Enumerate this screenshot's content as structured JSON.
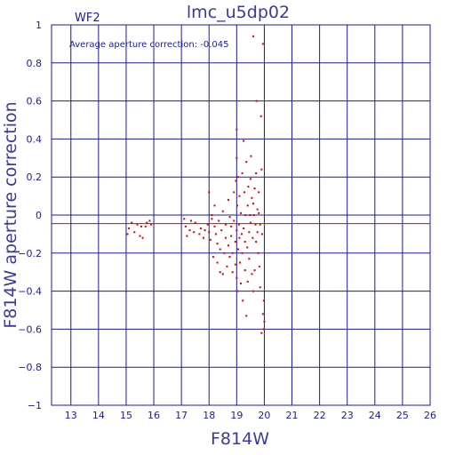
{
  "chart_data": {
    "type": "scatter",
    "title": "lmc_u5dp02",
    "chip_label": "WF2",
    "annotation": "Average aperture correction: -0.045",
    "xlabel": "F814W",
    "ylabel": "F814W aperture correction",
    "xlim": [
      12.3,
      26
    ],
    "ylim": [
      -1,
      1
    ],
    "x_ticks": [
      "13",
      "14",
      "15",
      "16",
      "17",
      "18",
      "19",
      "20",
      "21",
      "22",
      "23",
      "24",
      "25",
      "26"
    ],
    "y_ticks": [
      "1",
      "0.8",
      "0.6",
      "0.4",
      "0.2",
      "0",
      "−0.2",
      "−0.4",
      "−0.6",
      "−0.8",
      "−1"
    ],
    "grid": true,
    "reference_line": {
      "y": -0.045,
      "color": "#e00000"
    },
    "colors": {
      "axes": "#1a1aa0",
      "points": "#e00000"
    },
    "points": [
      [
        15.05,
        -0.1
      ],
      [
        15.1,
        -0.07
      ],
      [
        15.2,
        -0.04
      ],
      [
        15.3,
        -0.09
      ],
      [
        15.4,
        -0.05
      ],
      [
        15.5,
        -0.11
      ],
      [
        15.55,
        -0.06
      ],
      [
        15.6,
        -0.12
      ],
      [
        15.7,
        -0.06
      ],
      [
        15.75,
        -0.04
      ],
      [
        15.85,
        -0.03
      ],
      [
        15.9,
        -0.05
      ],
      [
        17.1,
        -0.02
      ],
      [
        17.15,
        -0.06
      ],
      [
        17.2,
        -0.11
      ],
      [
        17.3,
        -0.08
      ],
      [
        17.35,
        -0.03
      ],
      [
        17.45,
        -0.09
      ],
      [
        17.5,
        -0.04
      ],
      [
        17.65,
        -0.1
      ],
      [
        17.7,
        -0.07
      ],
      [
        17.8,
        -0.12
      ],
      [
        17.85,
        -0.08
      ],
      [
        17.95,
        -0.05
      ],
      [
        18.0,
        -0.09
      ],
      [
        18.0,
        0.12
      ],
      [
        18.05,
        -0.13
      ],
      [
        18.1,
        -0.02
      ],
      [
        18.1,
        0.0
      ],
      [
        18.15,
        -0.22
      ],
      [
        18.2,
        -0.06
      ],
      [
        18.2,
        0.05
      ],
      [
        18.25,
        -0.1
      ],
      [
        18.3,
        -0.25
      ],
      [
        18.3,
        -0.15
      ],
      [
        18.35,
        -0.03
      ],
      [
        18.4,
        -0.3
      ],
      [
        18.4,
        -0.18
      ],
      [
        18.45,
        -0.08
      ],
      [
        18.5,
        -0.31
      ],
      [
        18.5,
        0.02
      ],
      [
        18.55,
        -0.2
      ],
      [
        18.6,
        -0.12
      ],
      [
        18.6,
        -0.05
      ],
      [
        18.65,
        -0.27
      ],
      [
        18.7,
        0.08
      ],
      [
        18.7,
        -0.16
      ],
      [
        18.75,
        -0.22
      ],
      [
        18.75,
        -0.01
      ],
      [
        18.8,
        -0.06
      ],
      [
        18.8,
        -0.11
      ],
      [
        18.85,
        -0.3
      ],
      [
        18.85,
        -0.2
      ],
      [
        18.9,
        0.12
      ],
      [
        18.9,
        -0.03
      ],
      [
        18.95,
        -0.14
      ],
      [
        18.95,
        -0.26
      ],
      [
        18.97,
        0.18
      ],
      [
        19.0,
        0.45
      ],
      [
        19.0,
        0.3
      ],
      [
        19.0,
        -0.08
      ],
      [
        19.0,
        -0.33
      ],
      [
        19.02,
        0.05
      ],
      [
        19.03,
        -0.4
      ],
      [
        19.05,
        0.2
      ],
      [
        19.05,
        -0.18
      ],
      [
        19.08,
        -0.05
      ],
      [
        19.1,
        0.1
      ],
      [
        19.1,
        -0.12
      ],
      [
        19.12,
        -0.25
      ],
      [
        19.15,
        -0.36
      ],
      [
        19.15,
        0.01
      ],
      [
        19.18,
        -0.1
      ],
      [
        19.2,
        0.22
      ],
      [
        19.2,
        -0.2
      ],
      [
        19.22,
        -0.45
      ],
      [
        19.25,
        0.39
      ],
      [
        19.25,
        -0.07
      ],
      [
        19.28,
        0.12
      ],
      [
        19.3,
        -0.29
      ],
      [
        19.3,
        -0.14
      ],
      [
        19.32,
        0.0
      ],
      [
        19.35,
        0.28
      ],
      [
        19.35,
        -0.53
      ],
      [
        19.38,
        -0.17
      ],
      [
        19.4,
        0.05
      ],
      [
        19.4,
        -0.35
      ],
      [
        19.42,
        0.15
      ],
      [
        19.45,
        -0.09
      ],
      [
        19.45,
        -0.23
      ],
      [
        19.48,
        0.0
      ],
      [
        19.5,
        0.19
      ],
      [
        19.5,
        -0.04
      ],
      [
        19.52,
        0.31
      ],
      [
        19.55,
        -0.31
      ],
      [
        19.55,
        0.09
      ],
      [
        19.58,
        -0.12
      ],
      [
        19.6,
        0.06
      ],
      [
        19.6,
        -0.4
      ],
      [
        19.62,
        0.0
      ],
      [
        19.65,
        -0.29
      ],
      [
        19.65,
        0.14
      ],
      [
        19.68,
        -0.05
      ],
      [
        19.7,
        0.22
      ],
      [
        19.7,
        -0.14
      ],
      [
        19.72,
        0.6
      ],
      [
        19.75,
        -0.09
      ],
      [
        19.75,
        0.03
      ],
      [
        19.78,
        -0.2
      ],
      [
        19.8,
        0.01
      ],
      [
        19.8,
        0.12
      ],
      [
        19.82,
        -0.27
      ],
      [
        19.85,
        -0.38
      ],
      [
        19.85,
        -0.05
      ],
      [
        19.88,
        0.52
      ],
      [
        19.9,
        -0.62
      ],
      [
        19.9,
        0.24
      ],
      [
        19.92,
        -0.1
      ],
      [
        19.95,
        -0.52
      ],
      [
        19.95,
        0.9
      ],
      [
        19.98,
        -0.6
      ],
      [
        19.98,
        -0.45
      ],
      [
        20.0,
        -0.56
      ],
      [
        19.6,
        0.94
      ]
    ]
  }
}
